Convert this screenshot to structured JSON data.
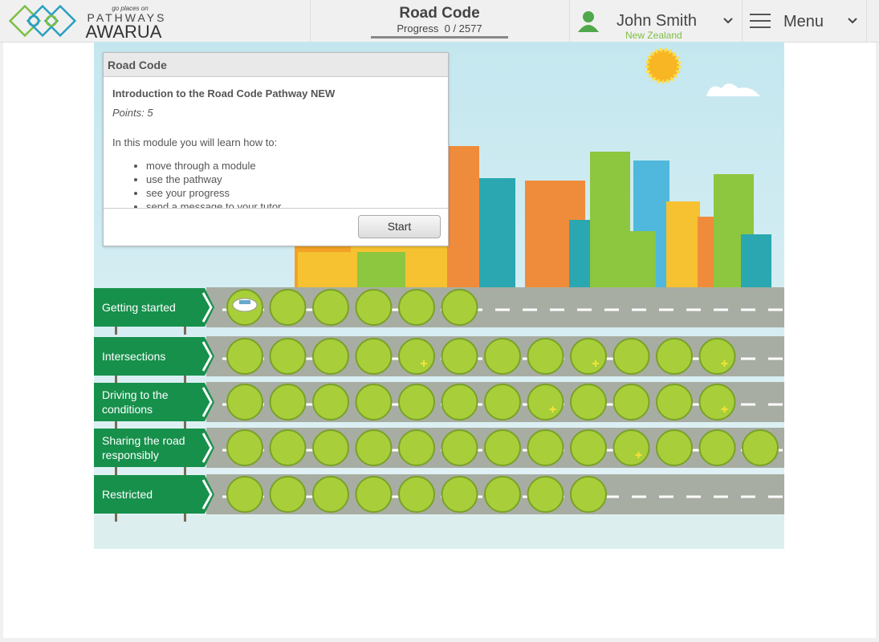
{
  "header": {
    "logo": {
      "tagline": "go places on",
      "name_top": "PATHWAYS",
      "name_bottom": "AWARUA"
    },
    "course_title": "Road Code",
    "progress": "Progress  0 / 2577",
    "user": {
      "name": "John Smith",
      "country": "New Zealand"
    },
    "menu": "Menu"
  },
  "module_panel": {
    "title": "Road Code",
    "module_title": "Introduction to the Road Code Pathway NEW",
    "points": "Points: 5",
    "intro": "In this module you will learn how to:",
    "items": [
      "move through a module",
      "use the pathway",
      "see your progress",
      "send a message to your tutor"
    ],
    "button": "Start"
  },
  "pathway": {
    "rows": [
      "Getting started",
      "Intersections",
      "Driving to the conditions",
      "Sharing the road responsibly",
      "Restricted"
    ]
  }
}
